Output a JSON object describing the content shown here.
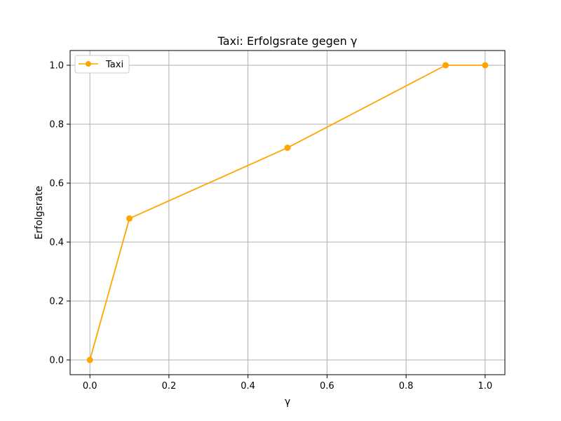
{
  "chart_data": {
    "type": "line",
    "title": "Taxi: Erfolgsrate gegen γ",
    "xlabel": "γ",
    "ylabel": "Erfolgsrate",
    "x": [
      0.0,
      0.1,
      0.5,
      0.9,
      1.0
    ],
    "series": [
      {
        "name": "Taxi",
        "values": [
          0.0,
          0.48,
          0.72,
          1.0,
          1.0
        ],
        "color": "#ffa500",
        "marker": "circle"
      }
    ],
    "xlim": [
      -0.05,
      1.05
    ],
    "ylim": [
      -0.05,
      1.05
    ],
    "xticks": [
      {
        "value": 0.0,
        "label": "0.0"
      },
      {
        "value": 0.2,
        "label": "0.2"
      },
      {
        "value": 0.4,
        "label": "0.4"
      },
      {
        "value": 0.6,
        "label": "0.6"
      },
      {
        "value": 0.8,
        "label": "0.8"
      },
      {
        "value": 1.0,
        "label": "1.0"
      }
    ],
    "yticks": [
      {
        "value": 0.0,
        "label": "0.0"
      },
      {
        "value": 0.2,
        "label": "0.2"
      },
      {
        "value": 0.4,
        "label": "0.4"
      },
      {
        "value": 0.6,
        "label": "0.6"
      },
      {
        "value": 0.8,
        "label": "0.8"
      },
      {
        "value": 1.0,
        "label": "1.0"
      }
    ],
    "grid": true,
    "legend_position": "top-left"
  }
}
